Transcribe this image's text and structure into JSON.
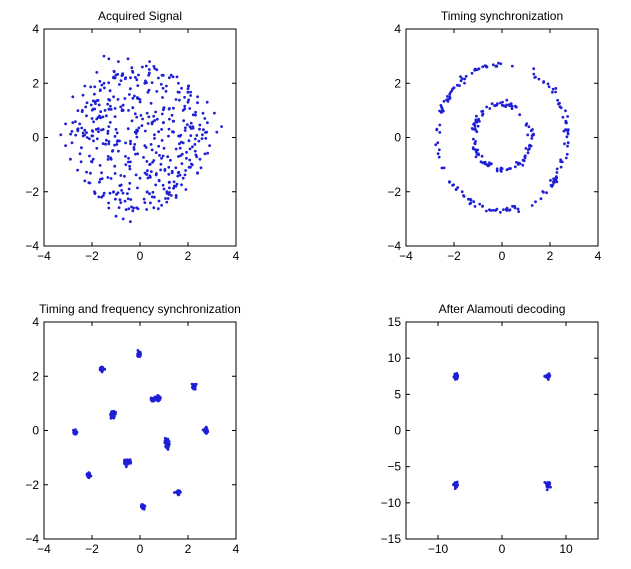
{
  "figure": {
    "background": "#ffffff",
    "marker_color": "#1f1fd6"
  },
  "chart_data": [
    {
      "type": "scatter",
      "title": "Acquired Signal",
      "xlabel": "",
      "ylabel": "",
      "xlim": [
        -4,
        4
      ],
      "ylim": [
        -4,
        4
      ],
      "xticks": [
        -4,
        -2,
        0,
        2,
        4
      ],
      "yticks": [
        -4,
        -2,
        0,
        2,
        4
      ],
      "xtick_labels": [
        "−4",
        "−2",
        "0",
        "2",
        "4"
      ],
      "ytick_labels": [
        "−4",
        "−2",
        "0",
        "2",
        "4"
      ],
      "distribution": "random cloud",
      "points": [
        [
          -1.5,
          3.0
        ],
        [
          -1.3,
          2.9
        ],
        [
          -0.9,
          2.8
        ],
        [
          -0.5,
          2.9
        ],
        [
          0.4,
          2.8
        ],
        [
          0.1,
          2.6
        ],
        [
          -0.3,
          2.4
        ],
        [
          -1.8,
          2.4
        ],
        [
          -1.0,
          2.3
        ],
        [
          0.7,
          2.5
        ],
        [
          1.3,
          2.3
        ],
        [
          1.6,
          2.0
        ],
        [
          2.0,
          1.8
        ],
        [
          2.4,
          1.5
        ],
        [
          2.8,
          1.3
        ],
        [
          -2.3,
          1.9
        ],
        [
          -2.8,
          1.5
        ],
        [
          -2.4,
          1.0
        ],
        [
          -3.1,
          0.5
        ],
        [
          -3.3,
          0.1
        ],
        [
          -3.1,
          -0.3
        ],
        [
          -2.9,
          -0.8
        ],
        [
          -2.6,
          -1.2
        ],
        [
          -2.3,
          -1.6
        ],
        [
          -1.9,
          -2.0
        ],
        [
          -1.6,
          -2.2
        ],
        [
          -1.3,
          -2.6
        ],
        [
          -0.8,
          -2.4
        ],
        [
          -0.3,
          -2.7
        ],
        [
          -0.7,
          -3.0
        ],
        [
          -1.0,
          -2.9
        ],
        [
          -0.4,
          -3.1
        ],
        [
          0.2,
          -2.4
        ],
        [
          0.6,
          -2.2
        ],
        [
          0.9,
          -2.5
        ],
        [
          1.2,
          -2.1
        ],
        [
          1.5,
          -1.8
        ],
        [
          1.8,
          -1.5
        ],
        [
          2.1,
          -1.1
        ],
        [
          2.5,
          -0.8
        ],
        [
          2.9,
          -0.3
        ],
        [
          3.2,
          0.2
        ],
        [
          3.4,
          0.4
        ],
        [
          3.1,
          0.9
        ],
        [
          2.7,
          0.7
        ],
        [
          -2.0,
          0.7
        ],
        [
          -1.7,
          1.2
        ],
        [
          -1.4,
          0.8
        ],
        [
          -1.1,
          1.5
        ],
        [
          -0.7,
          1.0
        ],
        [
          -0.4,
          1.8
        ],
        [
          0.0,
          1.4
        ],
        [
          0.3,
          0.9
        ],
        [
          0.7,
          1.7
        ],
        [
          1.0,
          1.1
        ],
        [
          1.4,
          0.6
        ],
        [
          1.8,
          1.0
        ],
        [
          2.2,
          0.4
        ],
        [
          -2.2,
          0.0
        ],
        [
          -1.8,
          -0.4
        ],
        [
          -1.4,
          -0.1
        ],
        [
          -1.0,
          0.3
        ],
        [
          -0.6,
          -0.2
        ],
        [
          -0.2,
          0.2
        ],
        [
          0.2,
          -0.3
        ],
        [
          0.6,
          0.1
        ],
        [
          1.0,
          -0.4
        ],
        [
          1.4,
          0.2
        ],
        [
          1.8,
          -0.2
        ],
        [
          2.3,
          -0.5
        ],
        [
          -2.0,
          -0.9
        ],
        [
          -1.6,
          -1.3
        ],
        [
          -1.2,
          -0.8
        ],
        [
          -0.8,
          -1.4
        ],
        [
          -0.4,
          -0.9
        ],
        [
          0.0,
          -1.5
        ],
        [
          0.4,
          -1.0
        ],
        [
          0.8,
          -1.6
        ],
        [
          1.2,
          -1.1
        ],
        [
          1.6,
          -0.7
        ],
        [
          -1.5,
          2.0
        ],
        [
          -0.6,
          2.2
        ],
        [
          0.2,
          2.0
        ],
        [
          1.1,
          1.9
        ],
        [
          -2.6,
          0.3
        ],
        [
          -2.5,
          -0.6
        ],
        [
          2.6,
          0.1
        ],
        [
          2.4,
          -1.3
        ],
        [
          -1.1,
          -2.0
        ],
        [
          0.3,
          -2.0
        ],
        [
          1.0,
          -1.9
        ],
        [
          -0.1,
          -0.6
        ],
        [
          0.5,
          0.5
        ],
        [
          -0.9,
          -0.5
        ],
        [
          1.5,
          1.4
        ],
        [
          -1.9,
          1.6
        ],
        [
          2.0,
          1.3
        ],
        [
          -0.3,
          1.1
        ],
        [
          0.9,
          0.3
        ],
        [
          -1.3,
          0.4
        ]
      ]
    },
    {
      "type": "scatter",
      "title": "Timing synchronization",
      "xlabel": "",
      "ylabel": "",
      "xlim": [
        -4,
        4
      ],
      "ylim": [
        -4,
        4
      ],
      "xticks": [
        -4,
        -2,
        0,
        2,
        4
      ],
      "yticks": [
        -4,
        -2,
        0,
        2,
        4
      ],
      "xtick_labels": [
        "−4",
        "−2",
        "0",
        "2",
        "4"
      ],
      "ytick_labels": [
        "−4",
        "−2",
        "0",
        "2",
        "4"
      ],
      "distribution": "two concentric rings",
      "rings": [
        {
          "radius": 1.2,
          "count": 110
        },
        {
          "radius": 2.7,
          "count": 160
        }
      ]
    },
    {
      "type": "scatter",
      "title": "Timing and frequency synchronization",
      "xlabel": "",
      "ylabel": "",
      "xlim": [
        -4,
        4
      ],
      "ylim": [
        -4,
        4
      ],
      "xticks": [
        -4,
        -2,
        0,
        2,
        4
      ],
      "yticks": [
        -4,
        -2,
        0,
        2,
        4
      ],
      "xtick_labels": [
        "−4",
        "−2",
        "0",
        "2",
        "4"
      ],
      "ytick_labels": [
        "−4",
        "−2",
        "0",
        "2",
        "4"
      ],
      "distribution": "16 tight clusters",
      "clusters": [
        [
          -0.05,
          2.8
        ],
        [
          2.25,
          1.65
        ],
        [
          2.75,
          0.0
        ],
        [
          1.6,
          -2.3
        ],
        [
          0.1,
          -2.8
        ],
        [
          -2.15,
          -1.65
        ],
        [
          -2.7,
          -0.05
        ],
        [
          -1.6,
          2.3
        ],
        [
          0.75,
          1.2
        ],
        [
          1.15,
          -0.55
        ],
        [
          -0.6,
          -1.2
        ],
        [
          -1.15,
          0.55
        ],
        [
          -1.1,
          0.65
        ],
        [
          -0.45,
          -1.15
        ],
        [
          1.1,
          -0.4
        ],
        [
          0.55,
          1.15
        ]
      ]
    },
    {
      "type": "scatter",
      "title": "After Alamouti decoding",
      "xlabel": "",
      "ylabel": "",
      "xlim": [
        -15,
        15
      ],
      "ylim": [
        -15,
        15
      ],
      "xticks": [
        -10,
        0,
        10
      ],
      "yticks": [
        -15,
        -10,
        -5,
        0,
        5,
        10,
        15
      ],
      "xtick_labels": [
        "−10",
        "0",
        "10"
      ],
      "ytick_labels": [
        "−15",
        "−10",
        "−5",
        "0",
        "5",
        "10",
        "15"
      ],
      "distribution": "4 clusters (QPSK)",
      "clusters": [
        [
          -7.2,
          7.5
        ],
        [
          7.2,
          7.5
        ],
        [
          -7.2,
          -7.5
        ],
        [
          7.2,
          -7.5
        ]
      ]
    }
  ]
}
